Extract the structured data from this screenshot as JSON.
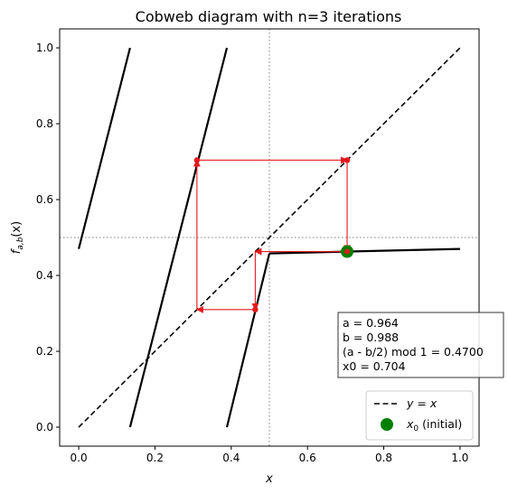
{
  "chart_data": {
    "type": "line",
    "title": "Cobweb diagram with n=3 iterations",
    "xlabel": "x",
    "ylabel": "f",
    "ylabel_sub": "a,b",
    "ylabel_arg": "(x)",
    "xlim": [
      -0.05,
      1.05
    ],
    "ylim": [
      -0.05,
      1.05
    ],
    "xticks": [
      0.0,
      0.2,
      0.4,
      0.6,
      0.8,
      1.0
    ],
    "yticks": [
      0.0,
      0.2,
      0.4,
      0.6,
      0.8,
      1.0
    ],
    "xtick_labels": [
      "0.0",
      "0.2",
      "0.4",
      "0.6",
      "0.8",
      "1.0"
    ],
    "ytick_labels": [
      "0.0",
      "0.2",
      "0.4",
      "0.6",
      "0.8",
      "1.0"
    ],
    "reference_lines": {
      "vertical_x": 0.5,
      "horizontal_y": 0.5,
      "style": "dotted",
      "color": "#808080"
    },
    "map_segments": [
      {
        "x": [
          0.0,
          0.1346
        ],
        "y": [
          0.47,
          1.0
        ]
      },
      {
        "x": [
          0.1346,
          0.3886
        ],
        "y": [
          0.0,
          1.0
        ]
      },
      {
        "x": [
          0.3886,
          0.5
        ],
        "y": [
          0.0,
          0.458
        ]
      },
      {
        "x": [
          0.5,
          1.0
        ],
        "y": [
          0.458,
          0.47
        ]
      }
    ],
    "identity_line": {
      "x": [
        0.0,
        1.0
      ],
      "y": [
        0.0,
        1.0
      ],
      "style": "dashed"
    },
    "cobweb": {
      "color": "#e41a1c",
      "path": [
        [
          0.704,
          0.704
        ],
        [
          0.704,
          0.463
        ],
        [
          0.463,
          0.463
        ],
        [
          0.463,
          0.31
        ],
        [
          0.31,
          0.31
        ],
        [
          0.31,
          0.704
        ],
        [
          0.704,
          0.704
        ]
      ],
      "points": [
        {
          "x": 0.704,
          "y": 0.704
        },
        {
          "x": 0.463,
          "y": 0.31
        },
        {
          "x": 0.31,
          "y": 0.704
        }
      ]
    },
    "initial_point": {
      "x": 0.704,
      "y": 0.463,
      "color": "#008000"
    },
    "info_box": [
      "a = 0.964",
      "b = 0.988",
      "(a - b/2) mod 1 = 0.4700",
      "x0 = 0.704"
    ],
    "legend": {
      "placement": "lower-right",
      "identity_label": "y = x",
      "initial_label_main": "x",
      "initial_label_sub": "0",
      "initial_label_suffix": " (initial)"
    }
  }
}
